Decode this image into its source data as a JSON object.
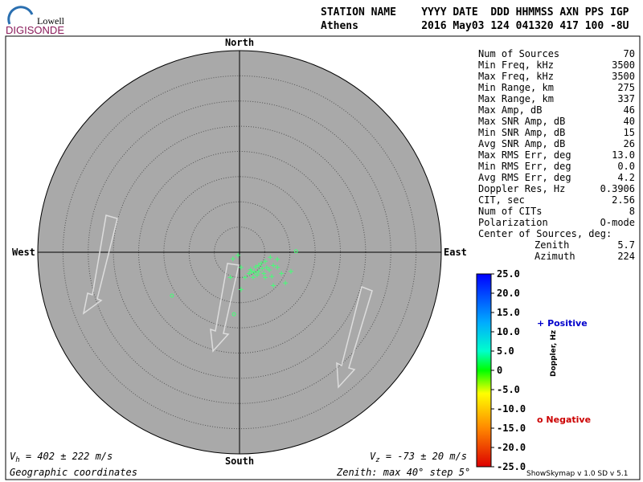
{
  "header": {
    "logo_top": "Lowell",
    "logo_bottom": "DIGISONDE",
    "line1": "STATION NAME    YYYY DATE  DDD HHMMSS AXN PPS IGP",
    "line2": "Athens          2016 May03 124 041320 417 100 -8U"
  },
  "compass": {
    "north": "North",
    "south": "South",
    "east": "East",
    "west": "West"
  },
  "plot": {
    "zenith_max": 40,
    "zenith_step": 5,
    "color": "#44ff77",
    "sources": [
      {
        "east": 11.2,
        "north": 0.2,
        "marker": "o"
      },
      {
        "east": 6.1,
        "north": -1.0,
        "marker": "+"
      },
      {
        "east": 7.5,
        "north": -1.4,
        "marker": "+"
      },
      {
        "east": 5.1,
        "north": -1.8,
        "marker": "+"
      },
      {
        "east": 4.3,
        "north": -2.2,
        "marker": "+"
      },
      {
        "east": 6.7,
        "north": -2.6,
        "marker": "+"
      },
      {
        "east": 3.2,
        "north": -2.9,
        "marker": "+"
      },
      {
        "east": 2.2,
        "north": -3.4,
        "marker": "+"
      },
      {
        "east": 3.8,
        "north": -3.8,
        "marker": "+"
      },
      {
        "east": 4.8,
        "north": -4.2,
        "marker": "+"
      },
      {
        "east": 5.9,
        "north": -3.5,
        "marker": "+"
      },
      {
        "east": 1.9,
        "north": -4.2,
        "marker": "+"
      },
      {
        "east": 0.3,
        "north": -3.0,
        "marker": "+"
      },
      {
        "east": 1.1,
        "north": -5.0,
        "marker": "+"
      },
      {
        "east": 2.7,
        "north": -5.0,
        "marker": "+"
      },
      {
        "east": 3.5,
        "north": -4.5,
        "marker": "+"
      },
      {
        "east": 6.4,
        "north": -4.8,
        "marker": "+"
      },
      {
        "east": 8.3,
        "north": -4.2,
        "marker": "+"
      },
      {
        "east": 10.2,
        "north": -3.8,
        "marker": "+"
      },
      {
        "east": 9.1,
        "north": -6.1,
        "marker": "+"
      },
      {
        "east": 6.7,
        "north": -6.6,
        "marker": "+"
      },
      {
        "east": 0.3,
        "north": -7.4,
        "marker": "+"
      },
      {
        "east": -1.8,
        "north": -5.0,
        "marker": "+"
      },
      {
        "east": -1.3,
        "north": -1.3,
        "marker": "+"
      },
      {
        "east": -0.3,
        "north": -0.6,
        "marker": "+"
      },
      {
        "east": -13.4,
        "north": -8.6,
        "marker": "o"
      },
      {
        "east": -1.1,
        "north": -12.3,
        "marker": "o"
      },
      {
        "east": 4.5,
        "north": -3.2,
        "marker": "+"
      },
      {
        "east": 5.4,
        "north": -3.0,
        "marker": "+"
      },
      {
        "east": 7.5,
        "north": -3.0,
        "marker": "+"
      },
      {
        "east": 2.4,
        "north": -3.8,
        "marker": "+"
      },
      {
        "east": 3.0,
        "north": -4.0,
        "marker": "+"
      },
      {
        "east": 3.8,
        "north": -2.6,
        "marker": "+"
      },
      {
        "east": 5.1,
        "north": -5.0,
        "marker": "+"
      }
    ]
  },
  "stats": [
    [
      "Num of Sources",
      "70"
    ],
    [
      "Min Freq, kHz",
      "3500"
    ],
    [
      "Max Freq, kHz",
      "3500"
    ],
    [
      "Min Range, km",
      "275"
    ],
    [
      "Max Range, km",
      "337"
    ],
    [
      "Max Amp, dB",
      "46"
    ],
    [
      "Max SNR Amp, dB",
      "40"
    ],
    [
      "Min SNR Amp, dB",
      "15"
    ],
    [
      "Avg SNR Amp, dB",
      "26"
    ],
    [
      "Max RMS Err, deg",
      "13.0"
    ],
    [
      "Min RMS Err, deg",
      "0.0"
    ],
    [
      "Avg RMS Err, deg",
      "4.2"
    ],
    [
      "Doppler Res, Hz",
      "0.3906"
    ],
    [
      "CIT, sec",
      "2.56"
    ],
    [
      "Num of CITs",
      "8"
    ],
    [
      "Polarization",
      "O-mode"
    ],
    [
      "Center of Sources, deg:",
      ""
    ]
  ],
  "center": [
    [
      "Zenith",
      "5.7"
    ],
    [
      "Azimuth",
      "224"
    ]
  ],
  "colorbar": {
    "label": "Doppler, Hz",
    "lim": [
      -25,
      25
    ],
    "ticks": [
      {
        "value": 25,
        "label": "25.0"
      },
      {
        "value": 20,
        "label": "20.0"
      },
      {
        "value": 15,
        "label": "15.0"
      },
      {
        "value": 10,
        "label": "10.0"
      },
      {
        "value": 5,
        "label": "5.0"
      },
      0,
      {
        "value": -5,
        "label": "-5.0"
      },
      {
        "value": -10,
        "label": "-10.0"
      },
      {
        "value": -15,
        "label": "-15.0"
      },
      {
        "value": -20,
        "label": "-20.0"
      },
      {
        "value": -25,
        "label": "-25.0"
      }
    ]
  },
  "legend": {
    "positive_mark": "+",
    "positive": "Positive",
    "negative_mark": "o",
    "negative": "Negative"
  },
  "footer": {
    "vh_symbol": "V",
    "vh_sub": "h",
    "vh_text": " = 402 ± 222 m/s",
    "vz_symbol": "V",
    "vz_sub": "z",
    "vz_text": " = -73 ± 20 m/s",
    "coords": "Geographic coordinates",
    "zenith": "Zenith: max 40°  step 5°",
    "version": "ShowSkymap v 1.0  SD v 5.1"
  }
}
